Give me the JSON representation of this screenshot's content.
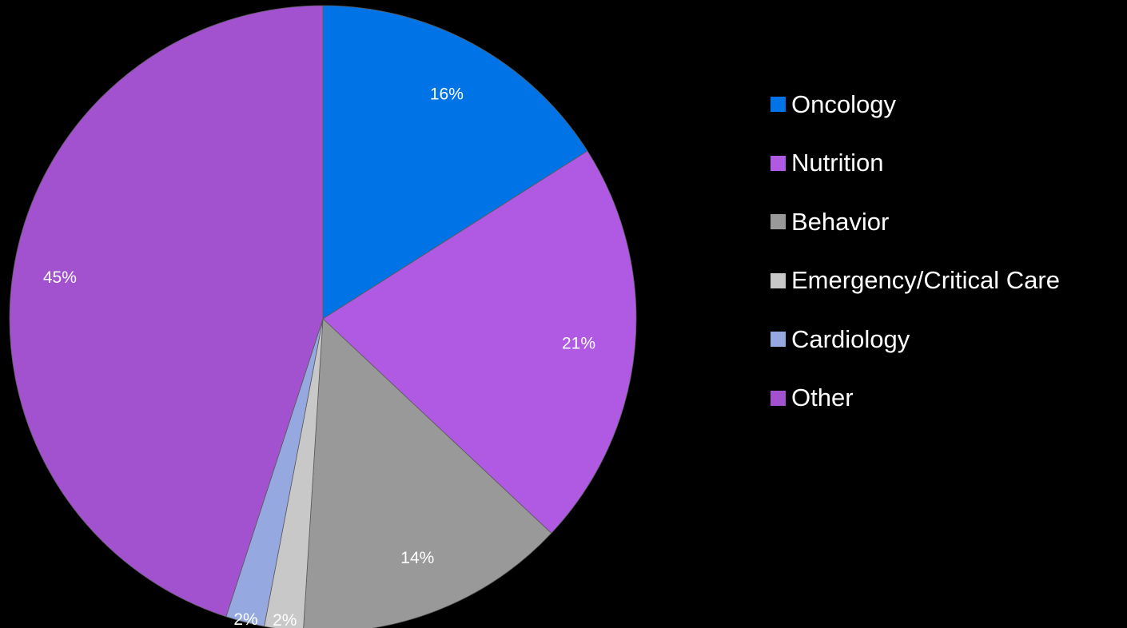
{
  "chart_data": {
    "type": "pie",
    "categories": [
      "Oncology",
      "Nutrition",
      "Behavior",
      "Emergency/Critical Care",
      "Cardiology",
      "Other"
    ],
    "values": [
      16,
      21,
      14,
      2,
      2,
      45
    ],
    "labels": [
      "16%",
      "21%",
      "14%",
      "2%",
      "2%",
      "45%"
    ],
    "colors": [
      "#0073E6",
      "#B05AE3",
      "#999999",
      "#C8C8C8",
      "#95A8E0",
      "#A352CF"
    ],
    "legend_position": "right",
    "start_angle_deg": 0,
    "direction": "clockwise"
  }
}
